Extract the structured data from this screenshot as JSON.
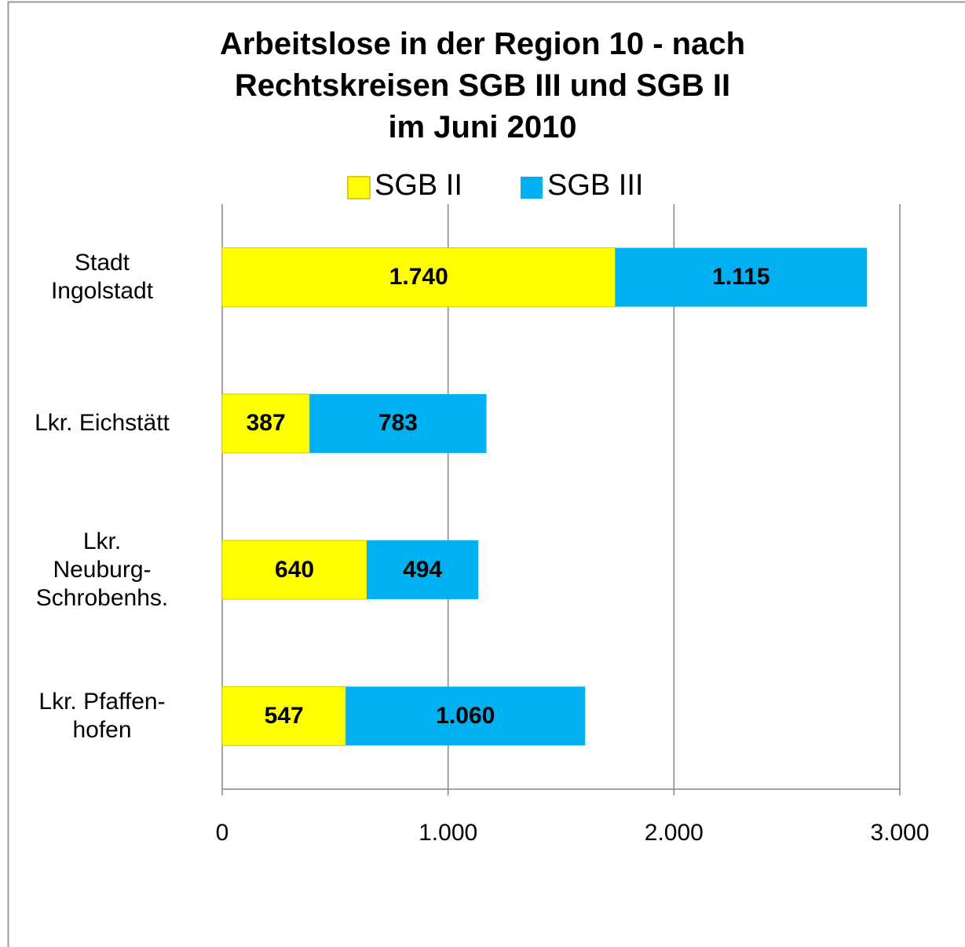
{
  "chart_data": {
    "type": "stacked-bar-horizontal",
    "title": "Arbeitslose in der Region 10 - nach\nRechtskreisen SGB III und SGB II\nim Juni 2010",
    "categories": [
      "Stadt\nIngolstadt",
      "Lkr. Eichstätt",
      "Lkr.\nNeuburg-\nSchrobenhs.",
      "Lkr. Pfaffen-\nhofen"
    ],
    "series": [
      {
        "name": "SGB II",
        "color": "#ffff00",
        "values": [
          1740,
          387,
          640,
          547
        ],
        "value_labels": [
          "1.740",
          "387",
          "640",
          "547"
        ]
      },
      {
        "name": "SGB III",
        "color": "#00b0f0",
        "values": [
          1115,
          783,
          494,
          1060
        ],
        "value_labels": [
          "1.115",
          "783",
          "494",
          "1.060"
        ]
      }
    ],
    "xlim": [
      0,
      3000
    ],
    "xticks": [
      0,
      {
        "value": 1000,
        "label": "1.000"
      },
      {
        "value": 2000,
        "label": "2.000"
      },
      {
        "value": 3000,
        "label": "3.000"
      }
    ],
    "grid": true,
    "legend": "top"
  }
}
